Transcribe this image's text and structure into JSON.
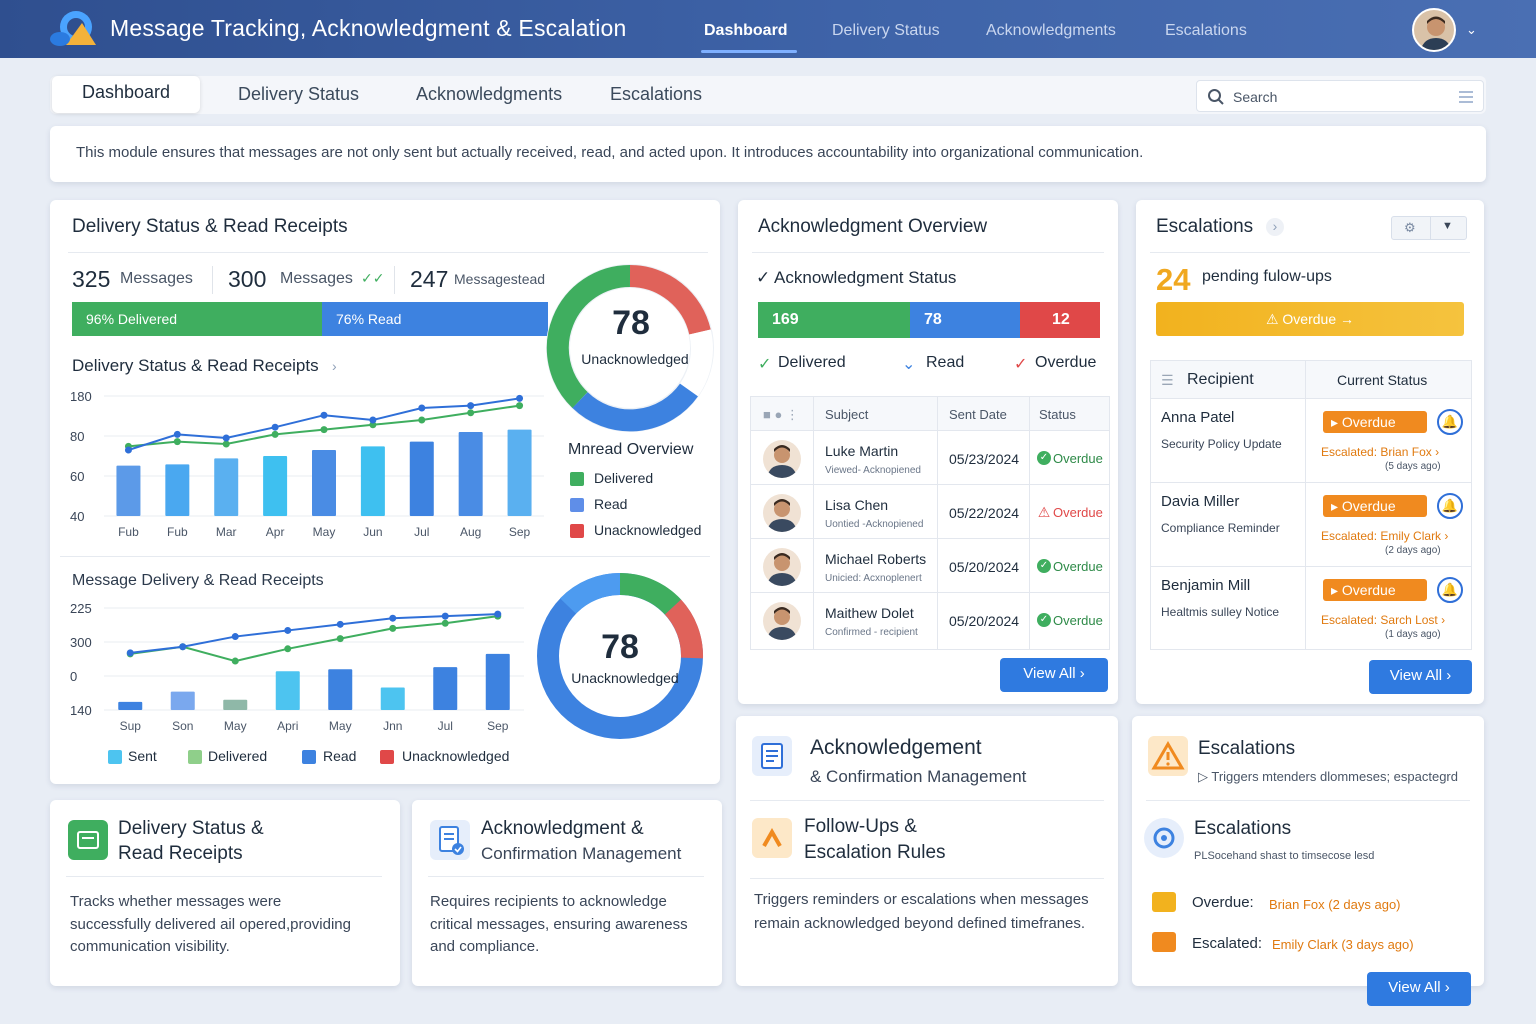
{
  "app": {
    "title": "Message Tracking, Acknowledgment & Escalation"
  },
  "topnav": [
    "Dashboard",
    "Delivery Status",
    "Acknowledgments",
    "Escalations"
  ],
  "tabs": [
    "Dashboard",
    "Delivery Status",
    "Acknowledgments",
    "Escalations"
  ],
  "search": {
    "placeholder": "Search"
  },
  "intro": "This module ensures that messages are not only sent but actually received, read, and acted upon. It introduces accountability into organizational communication.",
  "delivery": {
    "title": "Delivery Status & Read Receipts",
    "stats": [
      {
        "value": "325",
        "label": "Messages"
      },
      {
        "value": "300",
        "label": "Messages"
      },
      {
        "value": "247",
        "label": "Messagestead"
      }
    ],
    "delivered_label": "96%  Delivered",
    "read_label": "76%  Read",
    "delivered_pct": 96,
    "read_pct": 76,
    "gauge": {
      "value": "78",
      "label": "Unacknowledged"
    },
    "chart_title": "Delivery Status & Read Receipts",
    "legend_title": "Mnread Overview",
    "legend": [
      "Delivered",
      "Read",
      "Unacknowledged"
    ],
    "chart2_title": "Message Delivery & Read Receipts",
    "gauge2": {
      "value": "78",
      "label": "Unacknowledged"
    },
    "legend2": [
      "Sent",
      "Delivered",
      "Read",
      "Unacknowledged"
    ]
  },
  "chart_data": [
    {
      "type": "bar",
      "title": "Delivery Status & Read Receipts",
      "categories": [
        "Fub",
        "Fub",
        "Mar",
        "Apr",
        "May",
        "Jun",
        "Jul",
        "Aug",
        "Sep"
      ],
      "y_ticks": [
        "180",
        "80",
        "60",
        "40"
      ],
      "series": [
        {
          "name": "Read",
          "kind": "bar",
          "values": [
            42,
            43,
            48,
            50,
            55,
            58,
            62,
            70,
            72
          ]
        },
        {
          "name": "Delivered",
          "kind": "line",
          "values": [
            58,
            62,
            60,
            68,
            72,
            76,
            80,
            86,
            92
          ]
        },
        {
          "name": "Unacknowledged",
          "kind": "line",
          "values": [
            55,
            68,
            65,
            74,
            84,
            80,
            90,
            92,
            98
          ]
        }
      ]
    },
    {
      "type": "bar",
      "title": "Message Delivery & Read Receipts",
      "categories": [
        "Sup",
        "Son",
        "May",
        "Apri",
        "May",
        "Jnn",
        "Jul",
        "Sep"
      ],
      "y_ticks": [
        "225",
        "300",
        "0",
        "140"
      ],
      "series": [
        {
          "name": "Sent",
          "kind": "bar",
          "values": [
            8,
            18,
            10,
            38,
            40,
            22,
            42,
            55
          ]
        },
        {
          "name": "Delivered",
          "kind": "line",
          "values": [
            55,
            62,
            48,
            60,
            70,
            80,
            85,
            92
          ]
        },
        {
          "name": "Read",
          "kind": "line",
          "values": [
            56,
            62,
            72,
            78,
            84,
            90,
            92,
            94
          ]
        }
      ]
    }
  ],
  "ack": {
    "title": "Acknowledgment Overview",
    "status_title": "Acknowledgment Status",
    "bars": [
      {
        "value": "169",
        "color": "#3fae5f"
      },
      {
        "value": "78",
        "color": "#3d82e0"
      },
      {
        "value": "12",
        "color": "#e04848"
      }
    ],
    "legend": [
      "Delivered",
      "Read",
      "Overdue"
    ],
    "headers": [
      "Subject",
      "Sent Date",
      "Status"
    ],
    "rows": [
      {
        "name": "Luke Martin",
        "sub": "Viewed- Acknopiened",
        "date": "05/23/2024",
        "status": "Overdue",
        "icon": "check"
      },
      {
        "name": "Lisa Chen",
        "sub": "Uontied -Acknopiened",
        "date": "05/22/2024",
        "status": "Overdue",
        "icon": "warn"
      },
      {
        "name": "Michael Roberts",
        "sub": "Unicied: Acxnoplenert",
        "date": "05/20/2024",
        "status": "Overdue",
        "icon": "check"
      },
      {
        "name": "Maithew Dolet",
        "sub": "Confirmed - recipient",
        "date": "05/20/2024",
        "status": "Overdue",
        "icon": "check"
      }
    ],
    "view_all": "View All"
  },
  "esc": {
    "title": "Escalations",
    "count": "24",
    "count_label": "pending fulow-ups",
    "overdue_banner": "Overdue",
    "headers": [
      "Recipient",
      "Current Status"
    ],
    "rows": [
      {
        "name": "Anna Patel",
        "sub": "Security Policy Update",
        "status": "Overdue",
        "esc_label": "Escalated:",
        "esc_name": "Brian Fox",
        "ago": "(5 days ago)"
      },
      {
        "name": "Davia Miller",
        "sub": "Compliance Reminder",
        "status": "Overdue",
        "esc_label": "Escalated:",
        "esc_name": "Emily Clark",
        "ago": "(2 days ago)"
      },
      {
        "name": "Benjamin Mill",
        "sub": "Healtmis sulley Notice",
        "status": "Overdue",
        "esc_label": "Escalated:",
        "esc_name": "Sarch Lost",
        "ago": "(1 days ago)"
      }
    ],
    "view_all": "View All"
  },
  "cards": {
    "c1": {
      "title1": "Delivery Status &",
      "title2": "Read Receipts",
      "body": [
        "Tracks whether messages were",
        "successfully delivered ail opered,providing",
        "communication visibility."
      ]
    },
    "c2": {
      "title1": "Acknowledgment &",
      "title2": "Confirmation Management",
      "body": [
        "Requires recipients to acknowledge",
        "critical messages, ensuring awareness",
        "and compliance."
      ]
    },
    "c3": {
      "title1": "Acknowledgement",
      "title2": "& Confirmation Management",
      "sub1": "Follow-Ups &",
      "sub2": "Escalation Rules",
      "body": [
        "Triggers reminders or escalations when messages",
        "remain acknowledged beyond defined timefranes."
      ]
    },
    "c4": {
      "title": "Escalations",
      "sub": "Triggers mtenders dlommeses; espactegrd",
      "title2": "Escalations",
      "sub2": "PLSocehand shast to timsecose lesd",
      "overdue_label": "Overdue:",
      "overdue_value": "Brian Fox (2 days ago)",
      "escalated_label": "Escalated:",
      "escalated_value": "Emily Clark (3 days ago)",
      "view_all": "View All"
    }
  },
  "colors": {
    "green": "#3fae5f",
    "blue": "#3d82e0",
    "red": "#e04848",
    "orange": "#f08a1f",
    "accent": "#2f7ae0"
  }
}
